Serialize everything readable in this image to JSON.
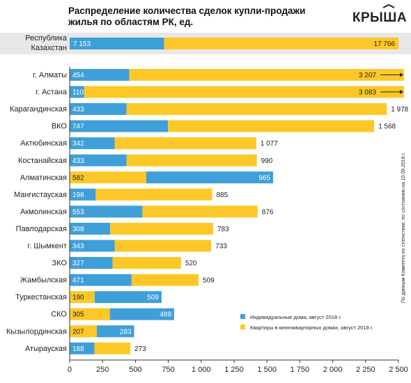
{
  "brand": {
    "logo_text": "КРЫША"
  },
  "title_lines": [
    "Распределение количества сделок купли-продажи",
    "жилья по областям РК, ед."
  ],
  "source_note": "По данным Комитета по статистике, по состоянию на 10.09.2018 г.",
  "colors": {
    "houses": "#3f9fd9",
    "apartments": "#fdc827",
    "total_band": "#e8e8e8"
  },
  "chart_data": {
    "type": "bar",
    "orientation": "horizontal",
    "stacked": true,
    "xlim": [
      0,
      2500
    ],
    "xticks": [
      0,
      250,
      500,
      750,
      1000,
      1250,
      1500,
      1750,
      2000,
      2250,
      2500
    ],
    "xtick_labels": [
      "0",
      "250",
      "500",
      "750",
      "1 000",
      "1 250",
      "1 500",
      "1 750",
      "2 000",
      "2 250",
      "2 500"
    ],
    "legend": [
      {
        "key": "houses",
        "label": "Индивидуальные дома, август 2018 г."
      },
      {
        "key": "apartments",
        "label": "Квартиры в многоквартирных домах, август 2018 г."
      }
    ],
    "total": {
      "label_lines": [
        "Республика",
        "Казахстан"
      ],
      "houses": 7153,
      "apartments": 17766,
      "houses_label": "7 153",
      "apartments_label": "17 766"
    },
    "rows": [
      {
        "label": "г. Алматы",
        "houses": 454,
        "apartments": 3207,
        "houses_label": "454",
        "apartments_label": "3 207",
        "overflow": true
      },
      {
        "label": "г. Астана",
        "houses": 110,
        "apartments": 3083,
        "houses_label": "110",
        "apartments_label": "3 083",
        "overflow": true
      },
      {
        "label": "Карагандинская",
        "houses": 433,
        "apartments": 1978,
        "houses_label": "433",
        "apartments_label": "1 978"
      },
      {
        "label": "ВКО",
        "houses": 747,
        "apartments": 1568,
        "houses_label": "747",
        "apartments_label": "1 568"
      },
      {
        "label": "Актюбинская",
        "houses": 342,
        "apartments": 1077,
        "houses_label": "342",
        "apartments_label": "1 077"
      },
      {
        "label": "Костанайская",
        "houses": 433,
        "apartments": 990,
        "houses_label": "433",
        "apartments_label": "990"
      },
      {
        "label": "Алматинская",
        "houses": 965,
        "apartments": 582,
        "houses_label": "965",
        "apartments_label": "582",
        "apartments_first": true
      },
      {
        "label": "Мангистауская",
        "houses": 198,
        "apartments": 885,
        "houses_label": "198",
        "apartments_label": "885"
      },
      {
        "label": "Акмолинская",
        "houses": 553,
        "apartments": 876,
        "houses_label": "553",
        "apartments_label": "876"
      },
      {
        "label": "Павлодарская",
        "houses": 308,
        "apartments": 783,
        "houses_label": "308",
        "apartments_label": "783"
      },
      {
        "label": "г. Шымкент",
        "houses": 343,
        "apartments": 733,
        "houses_label": "343",
        "apartments_label": "733"
      },
      {
        "label": "ЗКО",
        "houses": 327,
        "apartments": 520,
        "houses_label": "327",
        "apartments_label": "520"
      },
      {
        "label": "Жамбылская",
        "houses": 471,
        "apartments": 509,
        "houses_label": "471",
        "apartments_label": "509"
      },
      {
        "label": "Туркестанская",
        "houses": 509,
        "apartments": 190,
        "houses_label": "509",
        "apartments_label": "190",
        "apartments_first": true
      },
      {
        "label": "СКО",
        "houses": 489,
        "apartments": 305,
        "houses_label": "489",
        "apartments_label": "305",
        "apartments_first": true
      },
      {
        "label": "Кызылординская",
        "houses": 283,
        "apartments": 207,
        "houses_label": "283",
        "apartments_label": "207",
        "apartments_first": true
      },
      {
        "label": "Атырауская",
        "houses": 188,
        "apartments": 273,
        "houses_label": "188",
        "apartments_label": "273"
      }
    ]
  }
}
